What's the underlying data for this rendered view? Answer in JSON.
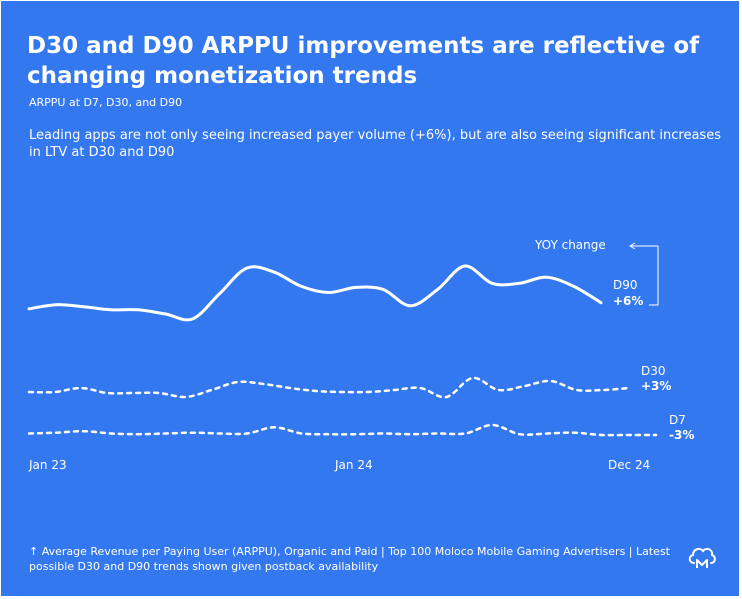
{
  "title": "D30 and D90 ARPPU improvements are reflective of changing monetization trends",
  "subtitle": "ARPPU at D7, D30, and D90",
  "description": "Leading apps are not only seeing increased payer volume (+6%), but are also seeing significant increases in LTV at D30 and D90",
  "footnote": "↑ Average Revenue per Paying User (ARPPU), Organic and Paid | Top 100 Moloco Mobile Gaming Advertisers | Latest possible D30 and D90 trends shown given postback availability",
  "logo_icon": "moloco-cloud-logo-icon",
  "colors": {
    "background": "#3478f0",
    "foreground": "#ffffff"
  },
  "chart_data": {
    "type": "line",
    "x_tick_labels": [
      "Jan 23",
      "Jan 24",
      "Dec 24"
    ],
    "yoy_label": "YOY change",
    "grid": false,
    "legend": "inline labels at series ends",
    "series": [
      {
        "name": "D90",
        "change": "+6%",
        "style": "solid",
        "values": [
          30,
          34,
          32,
          29,
          29,
          25,
          20,
          45,
          70,
          66,
          52,
          46,
          51,
          49,
          33,
          49,
          72,
          55,
          55,
          61,
          52,
          36
        ]
      },
      {
        "name": "D30",
        "change": "+3%",
        "style": "dashed",
        "values": [
          10,
          10,
          14,
          9,
          9,
          9,
          5,
          12,
          20,
          18,
          14,
          11,
          10,
          10,
          12,
          14,
          5,
          24,
          12,
          16,
          21,
          12,
          12,
          14
        ]
      },
      {
        "name": "D7",
        "change": "-3%",
        "style": "dashed",
        "values": [
          14,
          15,
          17,
          14,
          13,
          14,
          15,
          14,
          14,
          22,
          14,
          13,
          13,
          14,
          13,
          14,
          14,
          25,
          13,
          14,
          15,
          12,
          12,
          12
        ]
      }
    ]
  }
}
